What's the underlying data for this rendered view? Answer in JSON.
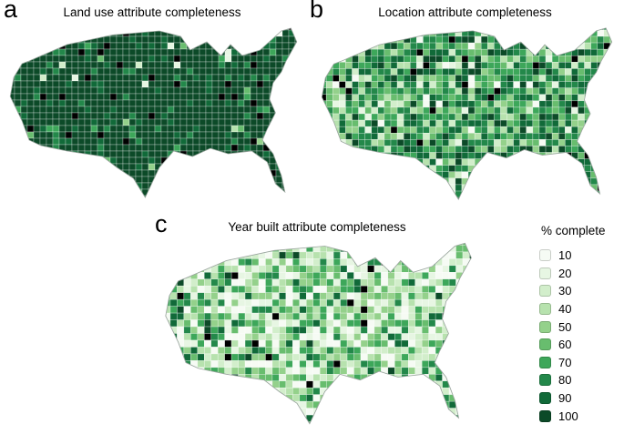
{
  "figure": {
    "panels": [
      {
        "label": "a",
        "title": "Land use attribute completeness",
        "cell_weights": [
          0.4,
          0.4,
          0.5,
          0.6,
          0.8,
          1.2,
          1.6,
          3,
          9,
          79,
          3.5
        ]
      },
      {
        "label": "b",
        "title": "Location attribute completeness",
        "cell_weights": [
          2,
          3,
          5,
          7,
          9,
          12,
          15,
          18,
          16,
          10,
          3
        ]
      },
      {
        "label": "c",
        "title": "Year built attribute completeness",
        "cell_weights": [
          14,
          13,
          13,
          13,
          12,
          11,
          9,
          7,
          4,
          2,
          2
        ]
      }
    ],
    "legend": {
      "title": "% complete",
      "labels": [
        "10",
        "20",
        "30",
        "40",
        "50",
        "60",
        "70",
        "80",
        "90",
        "100"
      ],
      "colors": [
        "#f6fbf4",
        "#e7f6e3",
        "#d2eecb",
        "#b7e2ae",
        "#94d18b",
        "#68bd6e",
        "#3da75a",
        "#23884a",
        "#116a39",
        "#0c4a28"
      ],
      "missing_color": "#000000",
      "outline_color": "#9aa59e",
      "county_line_color": "rgba(255,255,255,0.55)"
    }
  }
}
